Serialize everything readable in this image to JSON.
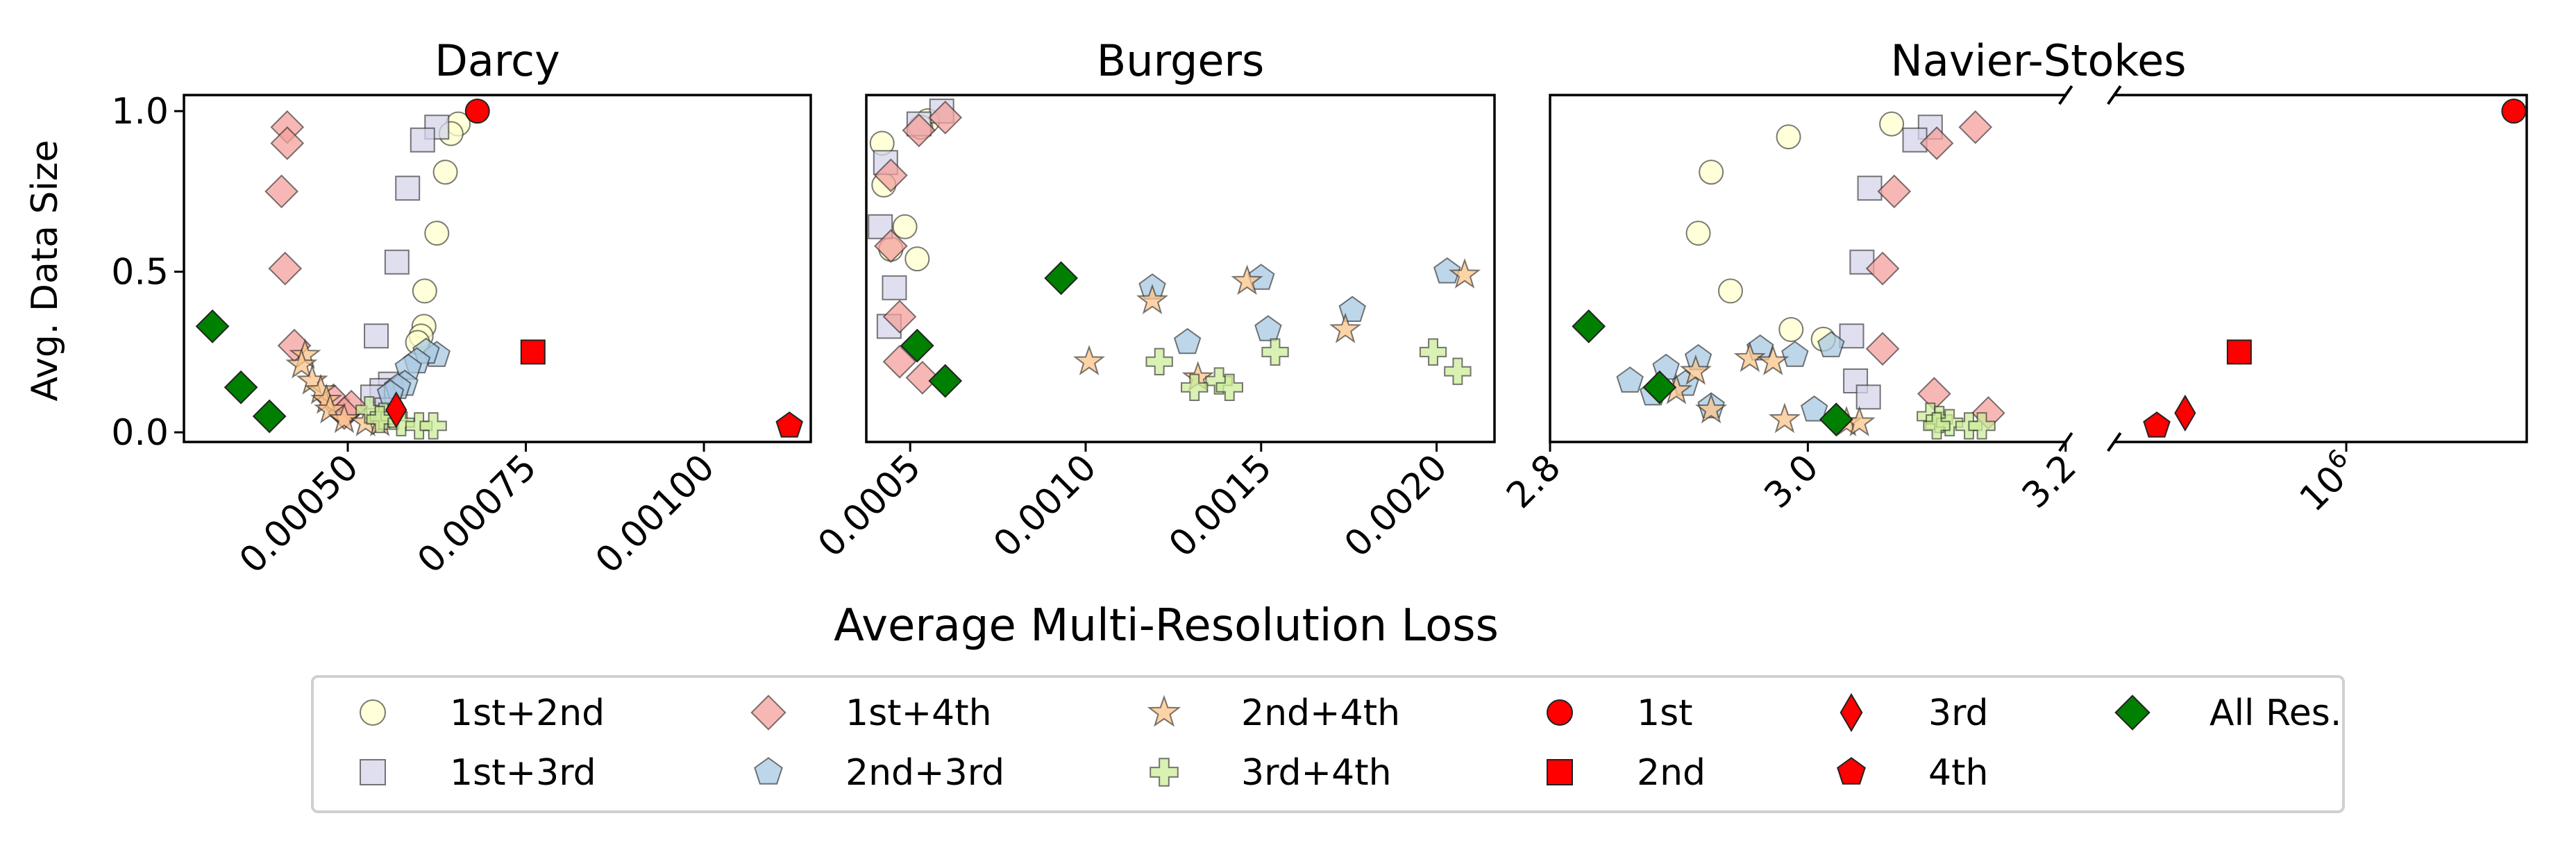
{
  "figure": {
    "xlabel": "Average Multi-Resolution Loss",
    "ylabel": "Avg. Data Size"
  },
  "legend": {
    "placement": "bottom-center",
    "entries": [
      {
        "key": "1st+2nd",
        "label": "1st+2nd",
        "marker": "circle",
        "color": "#ffffcc",
        "alpha": 0.75
      },
      {
        "key": "1st+3rd",
        "label": "1st+3rd",
        "marker": "square",
        "color": "#d4d4ea",
        "alpha": 0.75
      },
      {
        "key": "1st+4th",
        "label": "1st+4th",
        "marker": "diamond",
        "color": "#f4a09c",
        "alpha": 0.75
      },
      {
        "key": "2nd+3rd",
        "label": "2nd+3rd",
        "marker": "pentagon",
        "color": "#a8c8e2",
        "alpha": 0.75
      },
      {
        "key": "2nd+4th",
        "label": "2nd+4th",
        "marker": "star",
        "color": "#fbc48a",
        "alpha": 0.75
      },
      {
        "key": "3rd+4th",
        "label": "3rd+4th",
        "marker": "plus",
        "color": "#ccec99",
        "alpha": 0.75
      },
      {
        "key": "1st",
        "label": "1st",
        "marker": "circle",
        "color": "#ff0000",
        "alpha": 1
      },
      {
        "key": "2nd",
        "label": "2nd",
        "marker": "square",
        "color": "#ff0000",
        "alpha": 1
      },
      {
        "key": "3rd",
        "label": "3rd",
        "marker": "thin_diamond",
        "color": "#ff0000",
        "alpha": 1
      },
      {
        "key": "4th",
        "label": "4th",
        "marker": "pentagon",
        "color": "#ff0000",
        "alpha": 1
      },
      {
        "key": "All Res.",
        "label": "All Res.",
        "marker": "diamond",
        "color": "#008000",
        "alpha": 1
      }
    ]
  },
  "chart_data": [
    {
      "type": "scatter",
      "title": "Darcy",
      "xlim": [
        0.00027,
        0.00115
      ],
      "ylim": [
        -0.03,
        1.05
      ],
      "xticks": [
        0.0005,
        0.00075,
        0.001
      ],
      "xticklabels": [
        "0.00050",
        "0.00075",
        "0.00100"
      ],
      "yticks": [
        0.0,
        0.5,
        1.0
      ],
      "yticklabels": [
        "0.0",
        "0.5",
        "1.0"
      ],
      "series": [
        {
          "key": "1st+2nd",
          "points": [
            [
              0.000655,
              0.96
            ],
            [
              0.000645,
              0.93
            ],
            [
              0.000637,
              0.81
            ],
            [
              0.000625,
              0.62
            ],
            [
              0.000608,
              0.44
            ],
            [
              0.000607,
              0.33
            ],
            [
              0.000603,
              0.3
            ],
            [
              0.000598,
              0.28
            ]
          ]
        },
        {
          "key": "1st+3rd",
          "points": [
            [
              0.000625,
              0.95
            ],
            [
              0.000605,
              0.91
            ],
            [
              0.000584,
              0.76
            ],
            [
              0.000569,
              0.53
            ],
            [
              0.00054,
              0.3
            ],
            [
              0.00056,
              0.15
            ],
            [
              0.000548,
              0.13
            ],
            [
              0.000535,
              0.11
            ],
            [
              0.000555,
              0.07
            ]
          ]
        },
        {
          "key": "1st+4th",
          "points": [
            [
              0.000415,
              0.95
            ],
            [
              0.000415,
              0.9
            ],
            [
              0.000407,
              0.75
            ],
            [
              0.000412,
              0.51
            ],
            [
              0.000425,
              0.27
            ],
            [
              0.00048,
              0.1
            ],
            [
              0.000505,
              0.08
            ],
            [
              0.000495,
              0.06
            ]
          ]
        },
        {
          "key": "2nd+3rd",
          "points": [
            [
              0.000625,
              0.24
            ],
            [
              0.00061,
              0.25
            ],
            [
              0.000597,
              0.22
            ],
            [
              0.000585,
              0.2
            ],
            [
              0.00058,
              0.15
            ],
            [
              0.00057,
              0.14
            ],
            [
              0.00056,
              0.12
            ]
          ]
        },
        {
          "key": "2nd+4th",
          "points": [
            [
              0.00044,
              0.24
            ],
            [
              0.000435,
              0.21
            ],
            [
              0.00045,
              0.16
            ],
            [
              0.000462,
              0.13
            ],
            [
              0.00047,
              0.1
            ],
            [
              0.000475,
              0.07
            ],
            [
              0.000495,
              0.04
            ],
            [
              0.000525,
              0.03
            ],
            [
              0.000545,
              0.03
            ]
          ]
        },
        {
          "key": "3rd+4th",
          "points": [
            [
              0.00053,
              0.07
            ],
            [
              0.00055,
              0.05
            ],
            [
              0.000565,
              0.05
            ],
            [
              0.000545,
              0.04
            ],
            [
              0.000575,
              0.03
            ],
            [
              0.0006,
              0.02
            ],
            [
              0.00062,
              0.02
            ]
          ]
        },
        {
          "key": "1st",
          "points": [
            [
              0.000682,
              1.0
            ]
          ]
        },
        {
          "key": "2nd",
          "points": [
            [
              0.00076,
              0.25
            ]
          ]
        },
        {
          "key": "3rd",
          "points": [
            [
              0.000568,
              0.07
            ]
          ]
        },
        {
          "key": "4th",
          "points": [
            [
              0.00112,
              0.02
            ]
          ]
        },
        {
          "key": "All Res.",
          "points": [
            [
              0.00031,
              0.33
            ],
            [
              0.00035,
              0.14
            ],
            [
              0.00039,
              0.05
            ]
          ]
        }
      ]
    },
    {
      "type": "scatter",
      "title": "Burgers",
      "xlim": [
        0.000375,
        0.002165
      ],
      "ylim": [
        -0.03,
        1.05
      ],
      "xticks": [
        0.0005,
        0.001,
        0.0015,
        0.002
      ],
      "xticklabels": [
        "0.0005",
        "0.0010",
        "0.0015",
        "0.0020"
      ],
      "yticks": [],
      "yticklabels": [],
      "series": [
        {
          "key": "1st+2nd",
          "points": [
            [
              0.00055,
              0.97
            ],
            [
              0.00053,
              0.95
            ],
            [
              0.00042,
              0.9
            ],
            [
              0.000425,
              0.77
            ],
            [
              0.000485,
              0.64
            ],
            [
              0.000445,
              0.57
            ],
            [
              0.00052,
              0.54
            ]
          ]
        },
        {
          "key": "1st+3rd",
          "points": [
            [
              0.00059,
              1.0
            ],
            [
              0.000525,
              0.96
            ],
            [
              0.00043,
              0.84
            ],
            [
              0.000415,
              0.64
            ],
            [
              0.000455,
              0.45
            ],
            [
              0.00044,
              0.33
            ]
          ]
        },
        {
          "key": "1st+4th",
          "points": [
            [
              0.0006,
              0.98
            ],
            [
              0.000525,
              0.94
            ],
            [
              0.000445,
              0.8
            ],
            [
              0.000445,
              0.58
            ],
            [
              0.00047,
              0.36
            ],
            [
              0.00047,
              0.22
            ],
            [
              0.000535,
              0.17
            ]
          ]
        },
        {
          "key": "2nd+3rd",
          "points": [
            [
              0.00119,
              0.45
            ],
            [
              0.0015,
              0.48
            ],
            [
              0.00203,
              0.5
            ],
            [
              0.00129,
              0.28
            ],
            [
              0.00152,
              0.32
            ],
            [
              0.00176,
              0.38
            ]
          ]
        },
        {
          "key": "2nd+4th",
          "points": [
            [
              0.00119,
              0.41
            ],
            [
              0.00146,
              0.47
            ],
            [
              0.00208,
              0.49
            ],
            [
              0.00101,
              0.22
            ],
            [
              0.00132,
              0.17
            ],
            [
              0.00174,
              0.32
            ]
          ]
        },
        {
          "key": "3rd+4th",
          "points": [
            [
              0.00121,
              0.22
            ],
            [
              0.00138,
              0.16
            ],
            [
              0.00131,
              0.14
            ],
            [
              0.00141,
              0.14
            ],
            [
              0.00154,
              0.25
            ],
            [
              0.00199,
              0.25
            ],
            [
              0.00206,
              0.19
            ]
          ]
        },
        {
          "key": "All Res.",
          "points": [
            [
              0.00093,
              0.48
            ],
            [
              0.00052,
              0.27
            ],
            [
              0.0006,
              0.16
            ]
          ]
        }
      ]
    },
    {
      "type": "scatter",
      "title": "Navier-Stokes",
      "xscale": "broken",
      "break_marks": true,
      "segments": [
        {
          "xlim": [
            2.8,
            3.2
          ],
          "xticks": [
            2.8,
            3.0,
            3.2
          ],
          "xticklabels": [
            "2.8",
            "3.0",
            "3.2"
          ]
        },
        {
          "xlim": [
            3.24,
            3.56
          ],
          "xticks": [
            3.42
          ],
          "xticklabels": [
            "10^6"
          ]
        }
      ],
      "ylim": [
        -0.03,
        1.05
      ],
      "yticks": [],
      "yticklabels": [],
      "series": [
        {
          "key": "1st+2nd",
          "points": [
            [
              3.065,
              0.96
            ],
            [
              2.985,
              0.92
            ],
            [
              2.925,
              0.81
            ],
            [
              2.915,
              0.62
            ],
            [
              2.94,
              0.44
            ],
            [
              2.987,
              0.32
            ],
            [
              3.012,
              0.29
            ]
          ]
        },
        {
          "key": "1st+3rd",
          "points": [
            [
              3.095,
              0.95
            ],
            [
              3.083,
              0.91
            ],
            [
              3.048,
              0.76
            ],
            [
              3.042,
              0.53
            ],
            [
              3.034,
              0.3
            ],
            [
              3.037,
              0.16
            ],
            [
              3.047,
              0.11
            ]
          ]
        },
        {
          "key": "1st+4th",
          "points": [
            [
              3.13,
              0.95
            ],
            [
              3.1,
              0.9
            ],
            [
              3.067,
              0.75
            ],
            [
              3.058,
              0.51
            ],
            [
              3.058,
              0.26
            ],
            [
              3.098,
              0.12
            ],
            [
              3.14,
              0.06
            ]
          ]
        },
        {
          "key": "2nd+3rd",
          "points": [
            [
              2.862,
              0.16
            ],
            [
              2.88,
              0.12
            ],
            [
              2.89,
              0.2
            ],
            [
              2.905,
              0.15
            ],
            [
              2.915,
              0.23
            ],
            [
              2.925,
              0.08
            ],
            [
              2.99,
              0.24
            ],
            [
              2.963,
              0.26
            ],
            [
              3.018,
              0.27
            ],
            [
              3.005,
              0.07
            ]
          ]
        },
        {
          "key": "2nd+4th",
          "points": [
            [
              2.913,
              0.19
            ],
            [
              2.925,
              0.07
            ],
            [
              2.898,
              0.13
            ],
            [
              2.955,
              0.23
            ],
            [
              2.973,
              0.22
            ],
            [
              2.982,
              0.04
            ],
            [
              3.03,
              0.03
            ],
            [
              3.04,
              0.03
            ]
          ]
        },
        {
          "key": "3rd+4th",
          "points": [
            [
              3.095,
              0.05
            ],
            [
              3.102,
              0.04
            ],
            [
              3.11,
              0.03
            ],
            [
              3.125,
              0.02
            ],
            [
              3.135,
              0.02
            ],
            [
              3.1,
              0.02
            ]
          ]
        },
        {
          "key": "1st",
          "points": [
            [
              3.55,
              1.0
            ]
          ]
        },
        {
          "key": "2nd",
          "points": [
            [
              3.337,
              0.25
            ]
          ]
        },
        {
          "key": "3rd",
          "points": [
            [
              3.295,
              0.06
            ]
          ]
        },
        {
          "key": "4th",
          "points": [
            [
              3.273,
              0.02
            ]
          ]
        },
        {
          "key": "All Res.",
          "points": [
            [
              2.83,
              0.33
            ],
            [
              2.885,
              0.14
            ],
            [
              3.022,
              0.04
            ]
          ]
        }
      ]
    }
  ]
}
